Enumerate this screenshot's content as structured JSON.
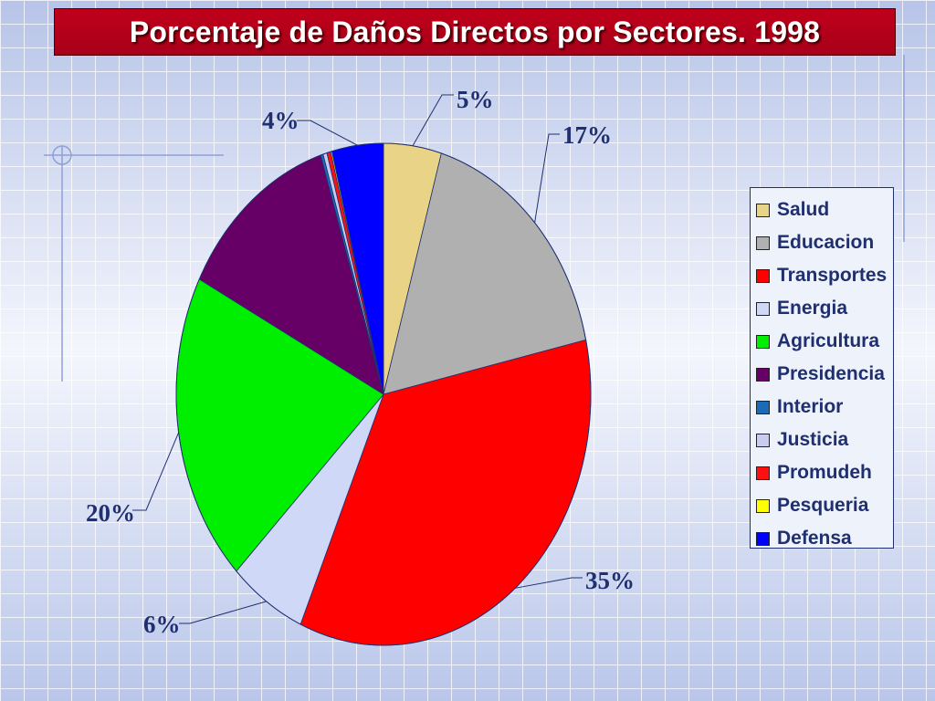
{
  "title": "Porcentaje de Daños Directos por Sectores. 1998",
  "chart_data": {
    "type": "pie",
    "title": "Porcentaje de Daños Directos por Sectores. 1998",
    "legend_position": "right",
    "slices": [
      {
        "label": "Salud",
        "value": 4.5,
        "color": "#e8d387",
        "data_label": "5%"
      },
      {
        "label": "Educacion",
        "value": 17,
        "color": "#b0b0b0",
        "data_label": "17%"
      },
      {
        "label": "Transportes",
        "value": 35,
        "color": "#ff0000",
        "data_label": "35%"
      },
      {
        "label": "Energia",
        "value": 6,
        "color": "#cfd8f7",
        "data_label": "6%"
      },
      {
        "label": "Agricultura",
        "value": 20,
        "color": "#00ee00",
        "data_label": "20%"
      },
      {
        "label": "Presidencia",
        "value": 12.5,
        "color": "#660066",
        "data_label": ""
      },
      {
        "label": "Interior",
        "value": 0.2,
        "color": "#1a6bb8",
        "data_label": ""
      },
      {
        "label": "Justicia",
        "value": 0.3,
        "color": "#c8ccf0",
        "data_label": ""
      },
      {
        "label": "Promudeh",
        "value": 0.3,
        "color": "#ff1010",
        "data_label": ""
      },
      {
        "label": "Pesqueria",
        "value": 0.1,
        "color": "#ffff00",
        "data_label": ""
      },
      {
        "label": "Defensa",
        "value": 4,
        "color": "#0000ff",
        "data_label": "4%"
      }
    ]
  }
}
